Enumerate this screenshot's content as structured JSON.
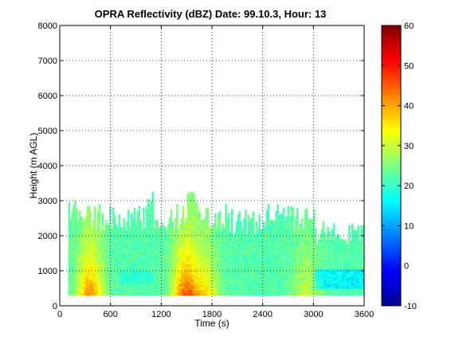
{
  "chart_data": {
    "type": "heatmap",
    "title": "OPRA Reflectivity (dBZ)  Date: 99.10.3, Hour: 13",
    "xlabel": "Time (s)",
    "ylabel": "Height (m AGL)",
    "xlim": [
      0,
      3600
    ],
    "ylim": [
      0,
      8000
    ],
    "x_ticks": [
      "0",
      "600",
      "1200",
      "1800",
      "2400",
      "3000",
      "3600"
    ],
    "y_ticks": [
      "0",
      "1000",
      "2000",
      "3000",
      "4000",
      "5000",
      "6000",
      "7000",
      "8000"
    ],
    "grid": true,
    "colorbar": {
      "colormap": "jet",
      "range": [
        -10,
        60
      ],
      "ticks": [
        "-10",
        "0",
        "10",
        "20",
        "30",
        "40",
        "50",
        "60"
      ]
    },
    "data_extent": {
      "x": [
        100,
        3600
      ],
      "y_min": 300,
      "typical_top": 2500,
      "max_top": 3400
    },
    "features": [
      {
        "x": 350,
        "peak_dbz": 42,
        "note": "bright streak near surface"
      },
      {
        "x": 1480,
        "peak_dbz": 45,
        "note": "strongest core near surface"
      },
      {
        "x": 1720,
        "peak_dbz": 34
      },
      {
        "x": 2900,
        "peak_dbz": 30
      }
    ]
  }
}
